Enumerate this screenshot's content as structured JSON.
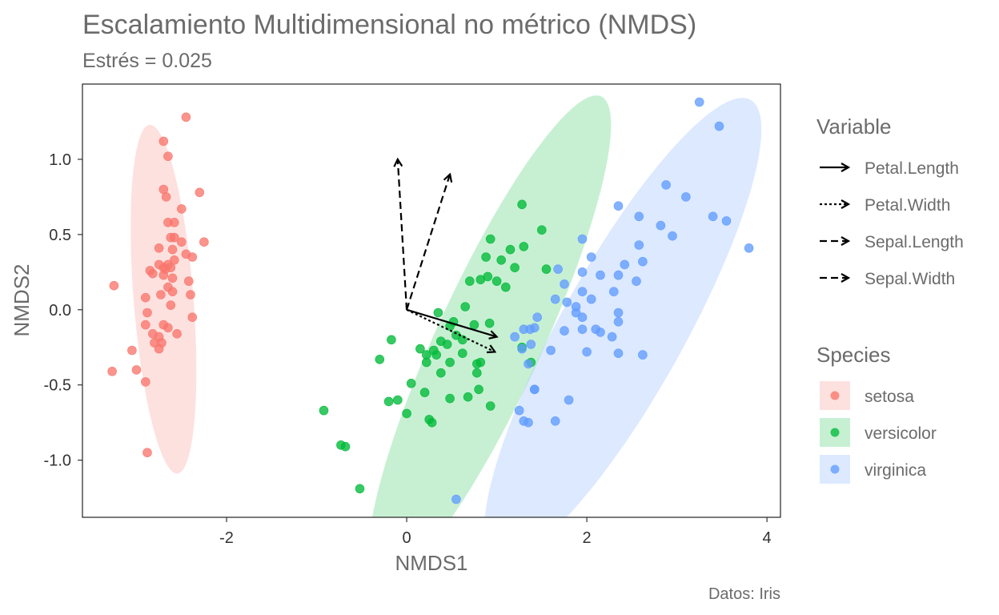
{
  "chart_data": {
    "type": "scatter",
    "title": "Escalamiento Multidimensional no métrico (NMDS)",
    "subtitle": "Estrés = 0.025",
    "xlabel": "NMDS1",
    "ylabel": "NMDS2",
    "caption": "Datos: Iris",
    "xlim": [
      -3.6,
      4.15
    ],
    "ylim": [
      -1.38,
      1.5
    ],
    "xticks": [
      -2,
      0,
      2,
      4
    ],
    "yticks": [
      -1.0,
      -0.5,
      0.0,
      0.5,
      1.0
    ],
    "grid": false,
    "legend_placement": "right",
    "vector_legend_title": "Variable",
    "species_legend_title": "Species",
    "vectors": [
      {
        "name": "Petal.Length",
        "x": 1.0,
        "y": -0.18,
        "dash": "solid"
      },
      {
        "name": "Petal.Width",
        "x": 0.98,
        "y": -0.28,
        "dash": "dotted"
      },
      {
        "name": "Sepal.Length",
        "x": 0.48,
        "y": 0.9,
        "dash": "dashed"
      },
      {
        "name": "Sepal.Width",
        "x": -0.1,
        "y": 1.0,
        "dash": "dashed"
      }
    ],
    "series": [
      {
        "name": "setosa",
        "color": "#F8766D",
        "ellipse": {
          "cx": -2.7,
          "cy": 0.07,
          "rx": 0.33,
          "ry": 1.17,
          "angle_deg": 8
        },
        "points": [
          [
            -2.45,
            1.28
          ],
          [
            -2.7,
            1.12
          ],
          [
            -2.65,
            1.02
          ],
          [
            -2.7,
            0.8
          ],
          [
            -2.67,
            0.75
          ],
          [
            -2.3,
            0.78
          ],
          [
            -2.5,
            0.67
          ],
          [
            -2.65,
            0.58
          ],
          [
            -2.58,
            0.58
          ],
          [
            -2.62,
            0.48
          ],
          [
            -2.58,
            0.48
          ],
          [
            -2.5,
            0.45
          ],
          [
            -2.25,
            0.45
          ],
          [
            -2.75,
            0.41
          ],
          [
            -2.6,
            0.4
          ],
          [
            -2.45,
            0.37
          ],
          [
            -2.38,
            0.35
          ],
          [
            -2.58,
            0.33
          ],
          [
            -2.75,
            0.3
          ],
          [
            -2.65,
            0.3
          ],
          [
            -2.7,
            0.28
          ],
          [
            -2.68,
            0.27
          ],
          [
            -2.62,
            0.28
          ],
          [
            -2.85,
            0.26
          ],
          [
            -2.82,
            0.24
          ],
          [
            -2.7,
            0.23
          ],
          [
            -2.6,
            0.21
          ],
          [
            -2.42,
            0.19
          ],
          [
            -2.65,
            0.15
          ],
          [
            -3.25,
            0.16
          ],
          [
            -2.73,
            0.1
          ],
          [
            -2.6,
            0.12
          ],
          [
            -2.4,
            0.1
          ],
          [
            -2.9,
            0.08
          ],
          [
            -2.62,
            0.03
          ],
          [
            -2.88,
            -0.02
          ],
          [
            -2.38,
            -0.05
          ],
          [
            -2.9,
            -0.1
          ],
          [
            -2.7,
            -0.1
          ],
          [
            -2.65,
            -0.12
          ],
          [
            -2.55,
            -0.16
          ],
          [
            -2.82,
            -0.16
          ],
          [
            -2.75,
            -0.18
          ],
          [
            -2.8,
            -0.22
          ],
          [
            -2.72,
            -0.22
          ],
          [
            -2.75,
            -0.26
          ],
          [
            -3.05,
            -0.27
          ],
          [
            -3.0,
            -0.4
          ],
          [
            -3.27,
            -0.41
          ],
          [
            -2.9,
            -0.48
          ],
          [
            -2.88,
            -0.95
          ]
        ]
      },
      {
        "name": "versicolor",
        "color": "#00BA38",
        "ellipse": {
          "cx": 0.92,
          "cy": -0.2,
          "rx": 2.05,
          "ry": 0.51,
          "angle_deg": 51
        },
        "points": [
          [
            1.28,
            0.7
          ],
          [
            1.5,
            0.53
          ],
          [
            0.93,
            0.47
          ],
          [
            1.3,
            0.42
          ],
          [
            1.15,
            0.4
          ],
          [
            1.05,
            0.33
          ],
          [
            0.88,
            0.35
          ],
          [
            1.2,
            0.28
          ],
          [
            0.9,
            0.22
          ],
          [
            0.7,
            0.19
          ],
          [
            1.0,
            0.19
          ],
          [
            0.82,
            0.2
          ],
          [
            1.1,
            0.15
          ],
          [
            1.55,
            0.27
          ],
          [
            0.65,
            0.02
          ],
          [
            0.35,
            -0.02
          ],
          [
            0.52,
            -0.08
          ],
          [
            0.48,
            -0.11
          ],
          [
            0.75,
            -0.1
          ],
          [
            0.92,
            -0.09
          ],
          [
            0.55,
            -0.17
          ],
          [
            0.38,
            -0.21
          ],
          [
            0.45,
            -0.23
          ],
          [
            0.62,
            -0.2
          ],
          [
            -0.17,
            -0.2
          ],
          [
            0.15,
            -0.26
          ],
          [
            0.3,
            -0.27
          ],
          [
            0.22,
            -0.3
          ],
          [
            0.33,
            -0.3
          ],
          [
            0.22,
            -0.35
          ],
          [
            0.48,
            -0.35
          ],
          [
            0.62,
            -0.29
          ],
          [
            -0.3,
            -0.33
          ],
          [
            0.82,
            -0.35
          ],
          [
            0.78,
            -0.36
          ],
          [
            0.78,
            -0.42
          ],
          [
            0.38,
            -0.42
          ],
          [
            1.28,
            -0.25
          ],
          [
            1.38,
            -0.35
          ],
          [
            0.05,
            -0.49
          ],
          [
            0.8,
            -0.53
          ],
          [
            0.2,
            -0.55
          ],
          [
            0.68,
            -0.58
          ],
          [
            0.48,
            -0.59
          ],
          [
            -0.1,
            -0.6
          ],
          [
            -0.2,
            -0.61
          ],
          [
            0.93,
            -0.64
          ],
          [
            0.0,
            -0.69
          ],
          [
            0.25,
            -0.73
          ],
          [
            0.28,
            -0.75
          ],
          [
            -0.92,
            -0.67
          ],
          [
            -0.73,
            -0.9
          ],
          [
            -0.68,
            -0.91
          ],
          [
            -0.52,
            -1.19
          ]
        ]
      },
      {
        "name": "virginica",
        "color": "#619CFF",
        "ellipse": {
          "cx": 2.4,
          "cy": -0.13,
          "rx": 2.1,
          "ry": 0.57,
          "angle_deg": 45
        },
        "points": [
          [
            3.25,
            1.38
          ],
          [
            3.47,
            1.22
          ],
          [
            3.8,
            0.41
          ],
          [
            2.88,
            0.83
          ],
          [
            3.1,
            0.75
          ],
          [
            2.35,
            0.69
          ],
          [
            2.58,
            0.62
          ],
          [
            3.4,
            0.62
          ],
          [
            3.55,
            0.59
          ],
          [
            2.82,
            0.56
          ],
          [
            2.95,
            0.49
          ],
          [
            1.95,
            0.47
          ],
          [
            2.58,
            0.43
          ],
          [
            2.05,
            0.35
          ],
          [
            2.62,
            0.32
          ],
          [
            2.42,
            0.3
          ],
          [
            1.68,
            0.27
          ],
          [
            1.75,
            0.17
          ],
          [
            1.95,
            0.25
          ],
          [
            2.15,
            0.23
          ],
          [
            2.35,
            0.23
          ],
          [
            2.55,
            0.19
          ],
          [
            2.3,
            0.12
          ],
          [
            1.95,
            0.12
          ],
          [
            2.05,
            0.07
          ],
          [
            1.65,
            0.07
          ],
          [
            1.78,
            0.05
          ],
          [
            1.88,
            0.02
          ],
          [
            1.88,
            -0.02
          ],
          [
            2.35,
            -0.02
          ],
          [
            1.95,
            -0.05
          ],
          [
            2.35,
            -0.08
          ],
          [
            1.45,
            -0.05
          ],
          [
            1.42,
            -0.12
          ],
          [
            1.37,
            -0.13
          ],
          [
            1.3,
            -0.13
          ],
          [
            1.2,
            -0.18
          ],
          [
            1.95,
            -0.13
          ],
          [
            2.1,
            -0.13
          ],
          [
            2.15,
            -0.15
          ],
          [
            1.75,
            -0.14
          ],
          [
            2.28,
            -0.18
          ],
          [
            1.38,
            -0.23
          ],
          [
            1.28,
            -0.26
          ],
          [
            1.6,
            -0.27
          ],
          [
            2.0,
            -0.28
          ],
          [
            2.35,
            -0.29
          ],
          [
            2.62,
            -0.3
          ],
          [
            1.35,
            -0.36
          ],
          [
            1.42,
            -0.53
          ],
          [
            1.42,
            -0.53
          ],
          [
            1.8,
            -0.6
          ],
          [
            1.25,
            -0.67
          ],
          [
            1.65,
            -0.74
          ],
          [
            1.3,
            -0.74
          ],
          [
            1.35,
            -0.75
          ],
          [
            0.55,
            -1.26
          ]
        ]
      }
    ]
  }
}
